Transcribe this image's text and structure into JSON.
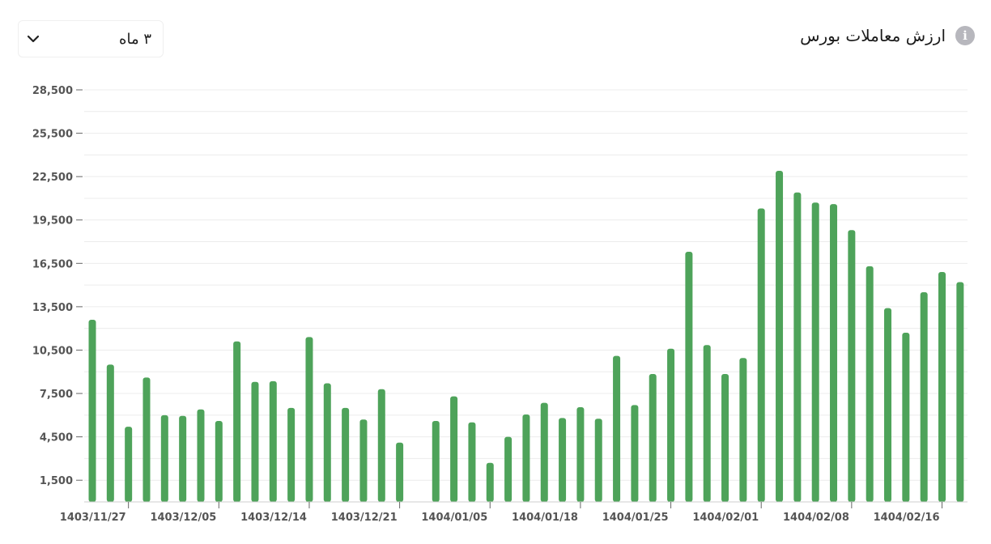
{
  "header": {
    "title": "ارزش معاملات بورس",
    "info_icon": "info-icon"
  },
  "filter": {
    "selected": "۳ ماه",
    "icon": "chevron-down-icon"
  },
  "colors": {
    "bar": "#4ea35a",
    "grid": "#ececec",
    "axis_text": "#555555",
    "info_icon": "#b7b7bd"
  },
  "chart_data": {
    "type": "bar",
    "title": "ارزش معاملات بورس",
    "xlabel": "",
    "ylabel": "",
    "ylim": [
      0,
      28500
    ],
    "yticks": [
      1500,
      4500,
      7500,
      10500,
      13500,
      16500,
      19500,
      22500,
      25500,
      28500
    ],
    "ytick_labels": [
      "1,500",
      "4,500",
      "7,500",
      "10,500",
      "13,500",
      "16,500",
      "19,500",
      "22,500",
      "25,500",
      "28,500"
    ],
    "xtick_labels": [
      "1403/11/27",
      "1403/12/05",
      "1403/12/14",
      "1403/12/21",
      "1404/01/05",
      "1404/01/18",
      "1404/01/25",
      "1404/02/01",
      "1404/02/08",
      "1404/02/16"
    ],
    "grid": true,
    "values": [
      12600,
      9500,
      5200,
      8600,
      6000,
      5950,
      6400,
      5600,
      11100,
      8300,
      8350,
      6500,
      11400,
      8200,
      6500,
      5700,
      7800,
      4100,
      null,
      5600,
      7300,
      5500,
      2700,
      4500,
      6050,
      6850,
      5800,
      6550,
      5750,
      10100,
      6700,
      8850,
      10600,
      17300,
      10850,
      8850,
      9950,
      20300,
      22900,
      21400,
      20700,
      20600,
      18800,
      16300,
      13400,
      11700,
      14500,
      15900,
      15200
    ]
  }
}
